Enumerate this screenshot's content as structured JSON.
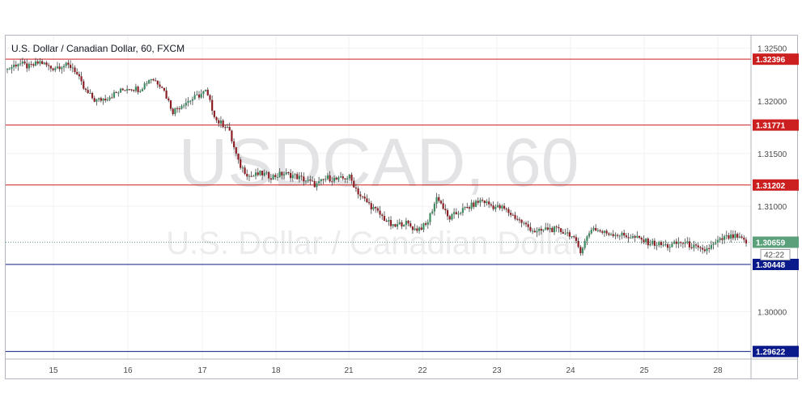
{
  "chart_data": {
    "type": "candlestick",
    "title": "U.S. Dollar / Canadian Dollar, 60, FXCM",
    "watermark": {
      "symbol_line": "USDCAD, 60",
      "name_line": "U.S. Dollar / Canadian Dollar"
    },
    "ylim": [
      1.2955,
      1.3262
    ],
    "y_ticks": [
      "1.32500",
      "1.32000",
      "1.31500",
      "1.31000",
      "1.30000"
    ],
    "x_ticks": [
      "15",
      "16",
      "17",
      "18",
      "21",
      "22",
      "23",
      "24",
      "25",
      "28"
    ],
    "grid": true,
    "levels": [
      {
        "value": 1.32396,
        "label": "1.32396",
        "color": "#cc1f1f"
      },
      {
        "value": 1.31771,
        "label": "1.31771",
        "color": "#cc1f1f"
      },
      {
        "value": 1.31202,
        "label": "1.31202",
        "color": "#cc1f1f"
      },
      {
        "value": 1.30448,
        "label": "1.30448",
        "color": "#0b1a8a"
      },
      {
        "value": 1.29622,
        "label": "1.29622",
        "color": "#0b1a8a"
      }
    ],
    "current_price": {
      "value": 1.30659,
      "label": "1.30659",
      "countdown": "42:22",
      "color": "#5aa07a"
    },
    "colors": {
      "up": "#3d8c62",
      "down": "#8c1f25",
      "grid": "#f0f1f3"
    },
    "price_path": [
      1.323,
      1.3236,
      1.3232,
      1.3237,
      1.3231,
      1.3234,
      1.3232,
      1.321,
      1.32,
      1.3203,
      1.3208,
      1.3213,
      1.3211,
      1.3222,
      1.3215,
      1.319,
      1.3198,
      1.3203,
      1.3209,
      1.3181,
      1.3175,
      1.314,
      1.3128,
      1.3131,
      1.3128,
      1.3131,
      1.3129,
      1.3125,
      1.312,
      1.3127,
      1.3125,
      1.3128,
      1.311,
      1.31,
      1.309,
      1.308,
      1.3085,
      1.3078,
      1.3082,
      1.311,
      1.3088,
      1.3095,
      1.31,
      1.3106,
      1.31,
      1.3098,
      1.309,
      1.3082,
      1.3075,
      1.3079,
      1.3077,
      1.3074,
      1.3058,
      1.308,
      1.3075,
      1.3074,
      1.3072,
      1.307,
      1.3066,
      1.3064,
      1.3062,
      1.3066,
      1.3063,
      1.3057,
      1.3063,
      1.307,
      1.3071,
      1.3066
    ]
  }
}
